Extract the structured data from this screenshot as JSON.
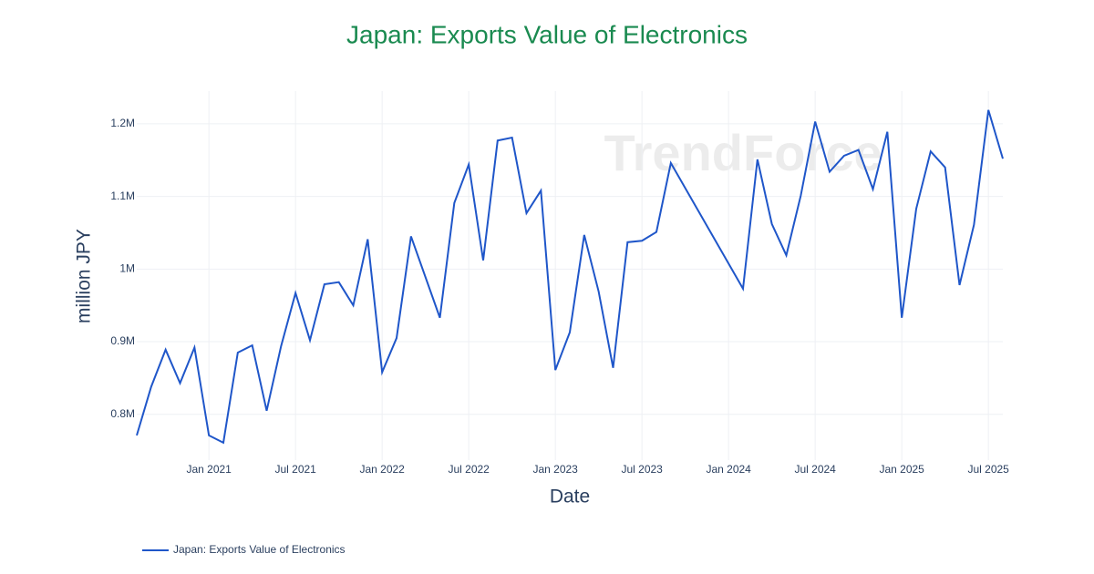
{
  "chart_data": {
    "type": "line",
    "title": "Japan: Exports Value of Electronics",
    "x_label": "Date",
    "y_label": "million JPY",
    "watermark": "TrendForce",
    "x": [
      "2020-08",
      "2020-09",
      "2020-10",
      "2020-11",
      "2020-12",
      "2021-01",
      "2021-02",
      "2021-03",
      "2021-04",
      "2021-05",
      "2021-06",
      "2021-07",
      "2021-08",
      "2021-09",
      "2021-10",
      "2021-11",
      "2021-12",
      "2022-01",
      "2022-02",
      "2022-03",
      "2022-05",
      "2022-06",
      "2022-07",
      "2022-08",
      "2022-09",
      "2022-10",
      "2022-11",
      "2022-12",
      "2023-01",
      "2023-02",
      "2023-03",
      "2023-04",
      "2023-05",
      "2023-06",
      "2023-07",
      "2023-08",
      "2023-09",
      "2024-02",
      "2024-03",
      "2024-04",
      "2024-05",
      "2024-06",
      "2024-07",
      "2024-08",
      "2024-09",
      "2024-10",
      "2024-11",
      "2024-12",
      "2025-01",
      "2025-02",
      "2025-03",
      "2025-04",
      "2025-05",
      "2025-06",
      "2025-07",
      "2025-08"
    ],
    "series": [
      {
        "name": "Japan: Exports Value of Electronics",
        "color": "#1f56c9",
        "values": [
          771000,
          838000,
          889000,
          843000,
          892000,
          771000,
          761000,
          885000,
          895000,
          805000,
          894000,
          967000,
          902000,
          979000,
          982000,
          950000,
          1041000,
          858000,
          905000,
          1045000,
          933000,
          1091000,
          1144000,
          1012000,
          1177000,
          1181000,
          1077000,
          1108000,
          861000,
          913000,
          1047000,
          969000,
          864000,
          1037000,
          1039000,
          1051000,
          1146000,
          973000,
          1151000,
          1062000,
          1019000,
          1101000,
          1203000,
          1134000,
          1156000,
          1164000,
          1110000,
          1189000,
          933000,
          1083000,
          1162000,
          1140000,
          978000,
          1061000,
          1219000,
          1152000
        ]
      }
    ],
    "xlim": [
      "2020-08",
      "2025-08"
    ],
    "xticks": [
      {
        "value": "2021-01",
        "label": "Jan 2021"
      },
      {
        "value": "2021-07",
        "label": "Jul 2021"
      },
      {
        "value": "2022-01",
        "label": "Jan 2022"
      },
      {
        "value": "2022-07",
        "label": "Jul 2022"
      },
      {
        "value": "2023-01",
        "label": "Jan 2023"
      },
      {
        "value": "2023-07",
        "label": "Jul 2023"
      },
      {
        "value": "2024-01",
        "label": "Jan 2024"
      },
      {
        "value": "2024-07",
        "label": "Jul 2024"
      },
      {
        "value": "2025-01",
        "label": "Jan 2025"
      },
      {
        "value": "2025-07",
        "label": "Jul 2025"
      }
    ],
    "ylim": [
      737000,
      1245000
    ],
    "yticks": [
      {
        "value": 800000,
        "label": "0.8M"
      },
      {
        "value": 900000,
        "label": "0.9M"
      },
      {
        "value": 1000000,
        "label": "1M"
      },
      {
        "value": 1100000,
        "label": "1.1M"
      },
      {
        "value": 1200000,
        "label": "1.2M"
      }
    ],
    "grid": true
  }
}
